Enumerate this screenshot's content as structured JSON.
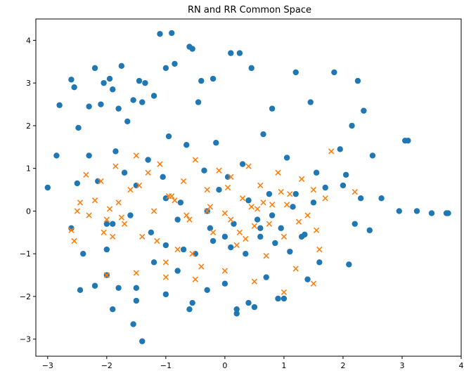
{
  "chart_data": {
    "type": "scatter",
    "title": "RN and RR Common Space",
    "xlabel": "",
    "ylabel": "",
    "xlim": [
      -3.2,
      4.0
    ],
    "ylim": [
      -3.4,
      4.5
    ],
    "xticks": [
      -3,
      -2,
      -1,
      0,
      1,
      2,
      3,
      4
    ],
    "yticks": [
      -3,
      -2,
      -1,
      0,
      1,
      2,
      3,
      4
    ],
    "grid": false,
    "colors": {
      "series_1": "#1f77b4",
      "series_2": "#ff7f0e"
    },
    "series": [
      {
        "marker": "circle",
        "color": "#1f77b4",
        "x": [
          -3.0,
          -2.85,
          -2.8,
          -2.6,
          -2.55,
          -2.5,
          -2.48,
          -2.45,
          -2.3,
          -2.2,
          -2.05,
          -2.1,
          -1.95,
          -1.9,
          -1.8,
          -1.75,
          -1.65,
          -1.55,
          -1.45,
          -1.4,
          -1.35,
          -1.2,
          -1.1,
          -1.0,
          -0.9,
          -0.85,
          -0.6,
          -0.55,
          -0.45,
          -0.4,
          -0.2,
          0.1,
          0.25,
          0.45,
          0.8,
          1.2,
          1.45,
          1.85,
          2.15,
          2.25,
          2.35,
          2.5,
          2.65,
          2.95,
          3.05,
          3.1,
          3.25,
          3.5,
          3.75,
          3.78,
          -2.3,
          -2.15,
          -2.0,
          -1.85,
          -1.7,
          -1.6,
          -1.5,
          -1.3,
          -1.25,
          -1.05,
          -0.95,
          -0.75,
          -0.65,
          -0.35,
          -0.25,
          -0.15,
          0.05,
          0.15,
          0.3,
          0.55,
          0.65,
          0.75,
          0.95,
          1.05,
          1.15,
          1.3,
          1.55,
          1.7,
          1.95,
          2.05,
          2.3,
          2.45,
          -2.0,
          -1.9,
          -1.8,
          -1.5,
          -1.2,
          -0.8,
          -0.6,
          -0.3,
          0.0,
          0.2,
          0.4,
          0.7,
          1.0,
          1.4,
          1.6,
          2.1,
          -1.0,
          -0.7,
          -0.5,
          -0.2,
          0.1,
          0.35,
          0.6,
          0.85,
          1.1,
          1.35,
          -1.55,
          -1.0,
          -0.55,
          0.2,
          0.5,
          0.9,
          -1.4,
          -1.5,
          -2.0,
          -1.9,
          -2.2,
          -2.4,
          -2.6,
          -1.0,
          -0.8,
          -0.1,
          0.0,
          0.4,
          0.8,
          1.2,
          1.5,
          2.2,
          2.0,
          -0.3,
          0.6
        ],
        "y": [
          0.55,
          1.3,
          2.48,
          3.08,
          2.9,
          0.65,
          1.95,
          -1.85,
          2.45,
          3.35,
          3.0,
          2.5,
          3.1,
          2.85,
          2.4,
          3.4,
          2.1,
          2.6,
          3.05,
          2.55,
          3.0,
          2.7,
          4.15,
          3.35,
          4.17,
          3.45,
          3.85,
          3.8,
          2.55,
          3.05,
          3.1,
          3.7,
          3.7,
          3.35,
          2.4,
          3.25,
          2.55,
          3.25,
          2.0,
          3.05,
          2.35,
          1.3,
          0.3,
          0.0,
          1.65,
          1.65,
          0.0,
          -0.05,
          -0.05,
          -0.05,
          1.3,
          0.7,
          -0.3,
          1.4,
          0.9,
          -0.1,
          0.6,
          1.2,
          -0.5,
          0.8,
          1.75,
          0.2,
          1.55,
          0.95,
          -0.4,
          1.6,
          0.8,
          -0.3,
          1.1,
          -0.2,
          1.8,
          0.4,
          -0.4,
          1.25,
          0.1,
          -0.6,
          0.9,
          0.55,
          1.45,
          0.85,
          0.3,
          -0.45,
          -1.5,
          -2.3,
          -1.8,
          -2.1,
          -1.2,
          -1.4,
          -2.3,
          -1.85,
          -1.7,
          -2.4,
          -2.15,
          -1.55,
          -2.05,
          -1.6,
          -1.2,
          -1.25,
          -0.8,
          -0.9,
          -1.0,
          -0.7,
          -0.85,
          -1.0,
          -0.6,
          -0.75,
          -0.95,
          -0.55,
          -2.65,
          -1.95,
          -2.15,
          -2.3,
          -2.25,
          -2.05,
          -3.05,
          -1.8,
          -0.9,
          -0.3,
          -1.75,
          -1.0,
          -0.4,
          0.3,
          -0.2,
          0.5,
          -0.6,
          0.25,
          -0.1,
          0.4,
          0.2,
          -0.3,
          0.6,
          0.0,
          -0.4
        ]
      },
      {
        "marker": "x",
        "color": "#ff7f0e",
        "x": [
          -2.6,
          -2.55,
          -2.5,
          -2.45,
          -2.35,
          -2.3,
          -2.2,
          -2.1,
          -2.0,
          -1.95,
          -1.9,
          -1.85,
          -1.8,
          -1.7,
          -1.6,
          -1.5,
          -1.4,
          -1.3,
          -1.2,
          -1.1,
          -1.0,
          -0.9,
          -0.8,
          -0.7,
          -0.6,
          -0.5,
          -0.4,
          -0.3,
          -0.2,
          -0.1,
          0.0,
          0.1,
          0.2,
          0.3,
          0.4,
          0.5,
          0.6,
          0.7,
          0.8,
          0.9,
          1.0,
          1.1,
          1.2,
          1.3,
          1.4,
          1.5,
          1.6,
          1.7,
          1.8,
          2.2,
          -2.05,
          -1.75,
          -1.45,
          -1.15,
          -0.85,
          -0.55,
          -0.25,
          0.05,
          0.35,
          0.65,
          0.95,
          1.25,
          1.55,
          -2.0,
          -1.5,
          -1.0,
          -0.5,
          0.0,
          0.5,
          1.0,
          1.5,
          -0.3,
          0.1,
          0.45,
          0.75,
          1.05,
          -0.65,
          -0.95,
          0.25,
          0.55
        ],
        "y": [
          -0.45,
          -0.7,
          0.0,
          0.2,
          0.85,
          -0.1,
          0.25,
          0.7,
          -0.2,
          0.05,
          -0.6,
          1.05,
          0.2,
          -0.3,
          0.5,
          1.3,
          -0.6,
          0.9,
          0.0,
          1.1,
          -1.2,
          0.35,
          -0.9,
          0.7,
          -0.2,
          1.2,
          -1.3,
          0.5,
          -0.5,
          0.95,
          -0.05,
          0.8,
          -0.8,
          0.3,
          1.05,
          -0.35,
          0.6,
          -1.05,
          0.15,
          0.9,
          -0.6,
          0.4,
          -1.35,
          0.75,
          -0.1,
          0.5,
          -0.9,
          0.3,
          1.4,
          0.45,
          -0.5,
          -0.15,
          0.6,
          -0.7,
          0.25,
          -1.0,
          0.1,
          0.55,
          -0.65,
          0.2,
          0.45,
          -0.25,
          -0.45,
          -1.5,
          -1.45,
          -1.55,
          -1.6,
          -1.4,
          -1.65,
          -1.9,
          -1.7,
          0.0,
          -0.2,
          0.1,
          -0.3,
          0.15,
          -0.1,
          0.35,
          -0.5,
          0.05
        ]
      }
    ]
  }
}
